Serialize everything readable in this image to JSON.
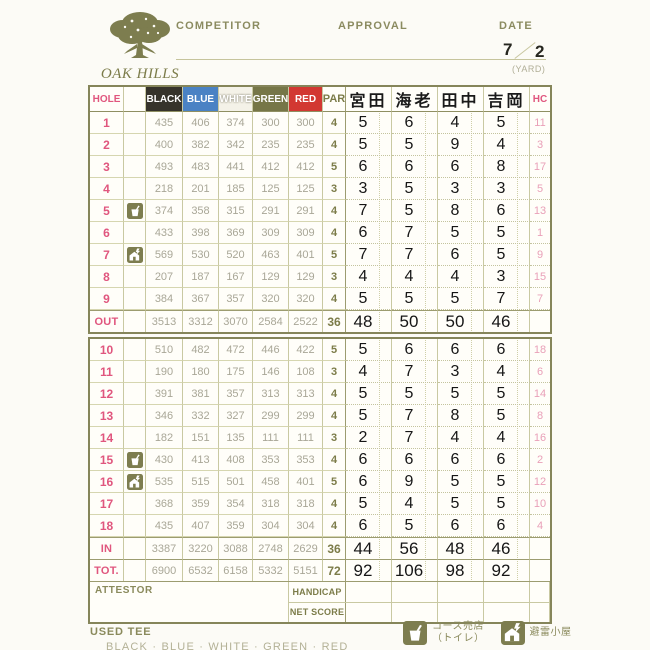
{
  "header": {
    "club_name": "OAK HILLS",
    "competitor_label": "COMPETITOR",
    "approval_label": "APPROVAL",
    "date_label": "DATE",
    "date_month": "7",
    "date_day": "2",
    "yard_label": "(YARD)"
  },
  "colors": {
    "olive": "#7c7c4a",
    "border_strong": "#85855a",
    "hole_pink": "#e0567e",
    "hc_pink": "#e9a0b8",
    "yardage_gray": "#a9a797",
    "tee_black": "#36332b",
    "tee_blue": "#4a82c4",
    "tee_white": "#f4f2e8",
    "tee_green": "#767647",
    "tee_red": "#d23832"
  },
  "table": {
    "hole_header": "HOLE",
    "par_header": "PAR",
    "hc_header": "HC",
    "tees": [
      {
        "label": "BLACK",
        "bg": "#36332b",
        "fg": "#ffffff"
      },
      {
        "label": "BLUE",
        "bg": "#4a82c4",
        "fg": "#ffffff"
      },
      {
        "label": "WHITE",
        "bg": "#f4f2e8",
        "fg": "#ffffff"
      },
      {
        "label": "GREEN",
        "bg": "#767647",
        "fg": "#ffffff"
      },
      {
        "label": "RED",
        "bg": "#d23832",
        "fg": "#ffffff"
      }
    ],
    "players": [
      "宮田",
      "海老",
      "田中",
      "吉岡"
    ],
    "front": [
      {
        "hole": "1",
        "facility": "",
        "yards": [
          "435",
          "406",
          "374",
          "300",
          "300"
        ],
        "par": "4",
        "scores": [
          "5",
          "6",
          "4",
          "5"
        ],
        "hc": "11"
      },
      {
        "hole": "2",
        "facility": "",
        "yards": [
          "400",
          "382",
          "342",
          "235",
          "235"
        ],
        "par": "4",
        "scores": [
          "5",
          "5",
          "9",
          "4"
        ],
        "hc": "3"
      },
      {
        "hole": "3",
        "facility": "",
        "yards": [
          "493",
          "483",
          "441",
          "412",
          "412"
        ],
        "par": "5",
        "scores": [
          "6",
          "6",
          "6",
          "8"
        ],
        "hc": "17"
      },
      {
        "hole": "4",
        "facility": "",
        "yards": [
          "218",
          "201",
          "185",
          "125",
          "125"
        ],
        "par": "3",
        "scores": [
          "3",
          "5",
          "3",
          "3"
        ],
        "hc": "5"
      },
      {
        "hole": "5",
        "facility": "shop",
        "yards": [
          "374",
          "358",
          "315",
          "291",
          "291"
        ],
        "par": "4",
        "scores": [
          "7",
          "5",
          "8",
          "6"
        ],
        "hc": "13"
      },
      {
        "hole": "6",
        "facility": "",
        "yards": [
          "433",
          "398",
          "369",
          "309",
          "309"
        ],
        "par": "4",
        "scores": [
          "6",
          "7",
          "5",
          "5"
        ],
        "hc": "1"
      },
      {
        "hole": "7",
        "facility": "shelter",
        "yards": [
          "569",
          "530",
          "520",
          "463",
          "401"
        ],
        "par": "5",
        "scores": [
          "7",
          "7",
          "6",
          "5"
        ],
        "hc": "9"
      },
      {
        "hole": "8",
        "facility": "",
        "yards": [
          "207",
          "187",
          "167",
          "129",
          "129"
        ],
        "par": "3",
        "scores": [
          "4",
          "4",
          "4",
          "3"
        ],
        "hc": "15"
      },
      {
        "hole": "9",
        "facility": "",
        "yards": [
          "384",
          "367",
          "357",
          "320",
          "320"
        ],
        "par": "4",
        "scores": [
          "5",
          "5",
          "5",
          "7"
        ],
        "hc": "7"
      }
    ],
    "out": {
      "label": "OUT",
      "yards": [
        "3513",
        "3312",
        "3070",
        "2584",
        "2522"
      ],
      "par": "36",
      "scores": [
        "48",
        "50",
        "50",
        "46"
      ],
      "hc": ""
    },
    "back": [
      {
        "hole": "10",
        "facility": "",
        "yards": [
          "510",
          "482",
          "472",
          "446",
          "422"
        ],
        "par": "5",
        "scores": [
          "5",
          "6",
          "6",
          "6"
        ],
        "hc": "18"
      },
      {
        "hole": "11",
        "facility": "",
        "yards": [
          "190",
          "180",
          "175",
          "146",
          "108"
        ],
        "par": "3",
        "scores": [
          "4",
          "7",
          "3",
          "4"
        ],
        "hc": "6"
      },
      {
        "hole": "12",
        "facility": "",
        "yards": [
          "391",
          "381",
          "357",
          "313",
          "313"
        ],
        "par": "4",
        "scores": [
          "5",
          "5",
          "5",
          "5"
        ],
        "hc": "14"
      },
      {
        "hole": "13",
        "facility": "",
        "yards": [
          "346",
          "332",
          "327",
          "299",
          "299"
        ],
        "par": "4",
        "scores": [
          "5",
          "7",
          "8",
          "5"
        ],
        "hc": "8"
      },
      {
        "hole": "14",
        "facility": "",
        "yards": [
          "182",
          "151",
          "135",
          "111",
          "111"
        ],
        "par": "3",
        "scores": [
          "2",
          "7",
          "4",
          "4"
        ],
        "hc": "16"
      },
      {
        "hole": "15",
        "facility": "shop",
        "yards": [
          "430",
          "413",
          "408",
          "353",
          "353"
        ],
        "par": "4",
        "scores": [
          "6",
          "6",
          "6",
          "6"
        ],
        "hc": "2"
      },
      {
        "hole": "16",
        "facility": "shelter",
        "yards": [
          "535",
          "515",
          "501",
          "458",
          "401"
        ],
        "par": "5",
        "scores": [
          "6",
          "9",
          "5",
          "5"
        ],
        "hc": "12"
      },
      {
        "hole": "17",
        "facility": "",
        "yards": [
          "368",
          "359",
          "354",
          "318",
          "318"
        ],
        "par": "4",
        "scores": [
          "5",
          "4",
          "5",
          "5"
        ],
        "hc": "10"
      },
      {
        "hole": "18",
        "facility": "",
        "yards": [
          "435",
          "407",
          "359",
          "304",
          "304"
        ],
        "par": "4",
        "scores": [
          "6",
          "5",
          "6",
          "6"
        ],
        "hc": "4"
      }
    ],
    "in": {
      "label": "IN",
      "yards": [
        "3387",
        "3220",
        "3088",
        "2748",
        "2629"
      ],
      "par": "36",
      "scores": [
        "44",
        "56",
        "48",
        "46"
      ],
      "hc": ""
    },
    "total": {
      "label": "TOT.",
      "yards": [
        "6900",
        "6532",
        "6158",
        "5332",
        "5151"
      ],
      "par": "72",
      "scores": [
        "92",
        "106",
        "98",
        "92"
      ],
      "hc": ""
    },
    "attestor_label": "ATTESTOR",
    "handicap_label": "HANDICAP",
    "net_score_label": "NET SCORE",
    "facility_icons": {
      "shop": "cup-icon",
      "shelter": "lightning-shelter-icon"
    }
  },
  "footer": {
    "used_tee_label": "USED TEE",
    "used_tee_values": "BLACK · BLUE · WHITE · GREEN · RED",
    "legend": [
      {
        "icon": "cup-icon",
        "label_line1": "コース売店",
        "label_line2": "（トイレ）"
      },
      {
        "icon": "lightning-shelter-icon",
        "label_line1": "避雷小屋",
        "label_line2": ""
      }
    ]
  }
}
